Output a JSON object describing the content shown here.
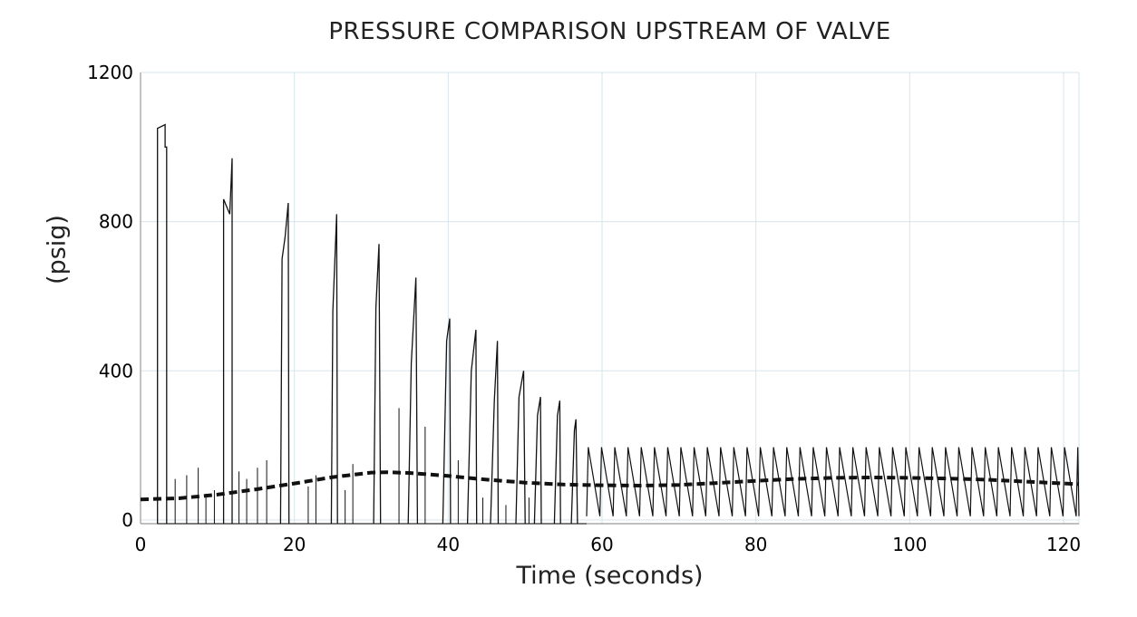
{
  "chart_data": {
    "type": "line",
    "title": "PRESSURE COMPARISON UPSTREAM OF VALVE",
    "xlabel": "Time (seconds)",
    "ylabel": "(psig)",
    "xlim": [
      0,
      122
    ],
    "ylim": [
      -10,
      1200
    ],
    "x_ticks": [
      0,
      20,
      40,
      60,
      80,
      100,
      120
    ],
    "y_ticks": [
      0,
      400,
      800,
      1200
    ],
    "grid": true,
    "colors": {
      "grid": "#d6e6ec",
      "axis": "#9a9a9a",
      "line": "#111111"
    },
    "series": [
      {
        "style": "solid",
        "segments": [
          {
            "x": [
              2.2,
              2.2,
              3.2,
              3.2,
              3.4,
              3.4
            ],
            "y": [
              -10,
              1050,
              1060,
              1000,
              1000,
              -10
            ]
          },
          {
            "x": [
              10.8,
              10.8,
              11.6,
              11.9,
              11.9
            ],
            "y": [
              -10,
              860,
              820,
              970,
              -10
            ]
          },
          {
            "x": [
              18.2,
              18.4,
              18.8,
              19.2,
              19.3
            ],
            "y": [
              -10,
              700,
              760,
              850,
              -10
            ]
          },
          {
            "x": [
              24.8,
              25.0,
              25.5,
              25.6
            ],
            "y": [
              -10,
              560,
              820,
              -10
            ]
          },
          {
            "x": [
              30.3,
              30.6,
              31.0,
              31.2
            ],
            "y": [
              -10,
              570,
              740,
              -10
            ]
          },
          {
            "x": [
              34.8,
              35.2,
              35.8,
              36.0
            ],
            "y": [
              -10,
              420,
              650,
              -10
            ]
          },
          {
            "x": [
              39.3,
              39.8,
              40.2,
              40.3
            ],
            "y": [
              -10,
              480,
              540,
              -10
            ]
          },
          {
            "x": [
              42.5,
              43.0,
              43.6,
              43.7
            ],
            "y": [
              -10,
              400,
              510,
              -10
            ]
          },
          {
            "x": [
              45.5,
              46.0,
              46.4,
              46.5
            ],
            "y": [
              -10,
              320,
              480,
              -10
            ]
          },
          {
            "x": [
              48.8,
              49.2,
              49.8,
              50.0
            ],
            "y": [
              -10,
              330,
              400,
              -10
            ]
          },
          {
            "x": [
              51.2,
              51.6,
              52.0,
              52.1
            ],
            "y": [
              -10,
              280,
              330,
              -10
            ]
          },
          {
            "x": [
              53.8,
              54.2,
              54.5,
              54.6
            ],
            "y": [
              -10,
              280,
              320,
              -10
            ]
          },
          {
            "x": [
              56.0,
              56.4,
              56.6,
              56.8
            ],
            "y": [
              -10,
              240,
              270,
              -10
            ]
          }
        ],
        "spikes": [
          {
            "x": 4.5,
            "y": 110
          },
          {
            "x": 6.0,
            "y": 120
          },
          {
            "x": 7.5,
            "y": 140
          },
          {
            "x": 8.5,
            "y": 70
          },
          {
            "x": 9.6,
            "y": 80
          },
          {
            "x": 12.8,
            "y": 130
          },
          {
            "x": 13.8,
            "y": 110
          },
          {
            "x": 15.2,
            "y": 140
          },
          {
            "x": 16.4,
            "y": 160
          },
          {
            "x": 21.8,
            "y": 90
          },
          {
            "x": 22.8,
            "y": 120
          },
          {
            "x": 26.6,
            "y": 80
          },
          {
            "x": 27.6,
            "y": 150
          },
          {
            "x": 33.6,
            "y": 300
          },
          {
            "x": 37.0,
            "y": 250
          },
          {
            "x": 41.3,
            "y": 160
          },
          {
            "x": 44.5,
            "y": 60
          },
          {
            "x": 47.5,
            "y": 40
          },
          {
            "x": 50.5,
            "y": 60
          }
        ],
        "sawtooth": {
          "start": 58.0,
          "end": 122.0,
          "period": 1.72,
          "peak": 195,
          "trough": 10
        }
      },
      {
        "style": "dashed",
        "x": [
          0,
          5,
          10,
          15,
          20,
          25,
          30,
          32,
          35,
          40,
          45,
          50,
          55,
          60,
          65,
          70,
          75,
          80,
          85,
          90,
          95,
          100,
          105,
          110,
          115,
          120,
          122
        ],
        "y": [
          55,
          58,
          68,
          82,
          98,
          115,
          127,
          128,
          126,
          118,
          108,
          100,
          95,
          93,
          92,
          94,
          99,
          105,
          110,
          113,
          114,
          113,
          111,
          108,
          103,
          98,
          96
        ]
      }
    ]
  }
}
